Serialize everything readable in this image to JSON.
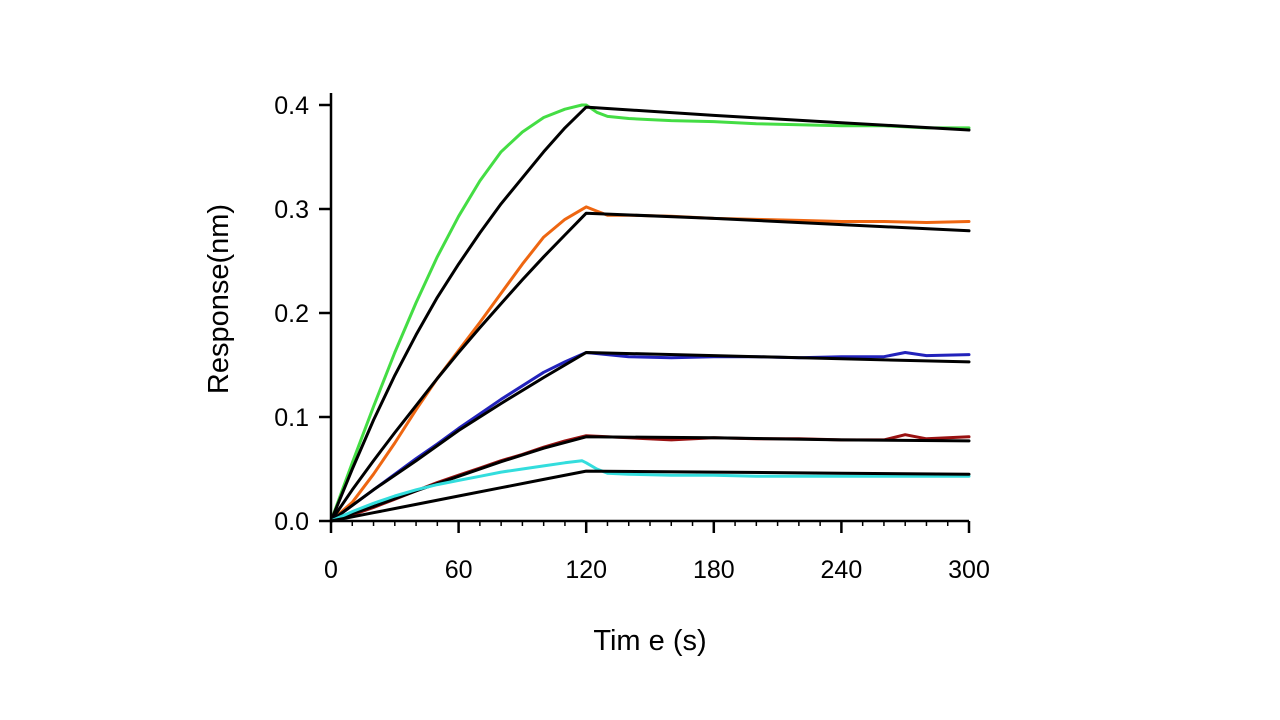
{
  "chart_data": {
    "type": "line",
    "xlabel": "Tim e  (s)",
    "ylabel": "Response(nm)",
    "xlim": [
      0,
      300
    ],
    "ylim": [
      0,
      0.4
    ],
    "xticks": [
      0,
      60,
      120,
      180,
      240,
      300
    ],
    "xtick_labels": [
      "0",
      "60",
      "120",
      "180",
      "240",
      "300"
    ],
    "yticks": [
      0,
      0.1,
      0.2,
      0.3,
      0.4
    ],
    "ytick_labels": [
      "0.0",
      "0.1",
      "0.2",
      "0.3",
      "0.4"
    ],
    "grid": false,
    "legend": "none",
    "association_end": 120,
    "series": [
      {
        "color": "#44dd44",
        "kind": "measured",
        "x": [
          0,
          10,
          20,
          30,
          40,
          50,
          60,
          70,
          80,
          90,
          100,
          110,
          118,
          120,
          125,
          130,
          140,
          150,
          160,
          180,
          200,
          220,
          240,
          260,
          280,
          300
        ],
        "y": [
          0,
          0.056,
          0.11,
          0.162,
          0.21,
          0.254,
          0.293,
          0.327,
          0.355,
          0.374,
          0.388,
          0.396,
          0.4,
          0.4,
          0.393,
          0.389,
          0.387,
          0.386,
          0.385,
          0.384,
          0.382,
          0.381,
          0.38,
          0.38,
          0.378,
          0.378
        ]
      },
      {
        "color": "#000000",
        "kind": "fit",
        "x": [
          0,
          10,
          20,
          30,
          40,
          50,
          60,
          70,
          80,
          90,
          100,
          110,
          120,
          180,
          240,
          300
        ],
        "y": [
          0,
          0.05,
          0.097,
          0.14,
          0.179,
          0.215,
          0.247,
          0.277,
          0.305,
          0.33,
          0.355,
          0.378,
          0.398,
          0.39,
          0.383,
          0.376
        ]
      },
      {
        "color": "#ee6611",
        "kind": "measured",
        "x": [
          0,
          10,
          20,
          30,
          40,
          50,
          60,
          70,
          80,
          90,
          100,
          110,
          120,
          125,
          130,
          140,
          160,
          180,
          200,
          220,
          240,
          260,
          280,
          300
        ],
        "y": [
          0,
          0.018,
          0.045,
          0.075,
          0.107,
          0.137,
          0.164,
          0.191,
          0.219,
          0.247,
          0.273,
          0.29,
          0.302,
          0.298,
          0.294,
          0.294,
          0.293,
          0.291,
          0.29,
          0.289,
          0.288,
          0.288,
          0.287,
          0.288
        ]
      },
      {
        "color": "#000000",
        "kind": "fit",
        "x": [
          0,
          10,
          20,
          30,
          40,
          50,
          60,
          70,
          80,
          90,
          100,
          110,
          120,
          180,
          240,
          300
        ],
        "y": [
          0,
          0.03,
          0.058,
          0.085,
          0.111,
          0.137,
          0.162,
          0.186,
          0.209,
          0.232,
          0.254,
          0.275,
          0.296,
          0.291,
          0.285,
          0.279
        ]
      },
      {
        "color": "#2222bb",
        "kind": "measured",
        "x": [
          0,
          10,
          20,
          30,
          40,
          50,
          60,
          70,
          80,
          90,
          100,
          110,
          120,
          140,
          160,
          180,
          200,
          220,
          240,
          260,
          270,
          280,
          300
        ],
        "y": [
          0,
          0.015,
          0.03,
          0.045,
          0.06,
          0.074,
          0.089,
          0.103,
          0.117,
          0.13,
          0.143,
          0.153,
          0.162,
          0.158,
          0.157,
          0.158,
          0.158,
          0.157,
          0.158,
          0.158,
          0.162,
          0.159,
          0.16
        ]
      },
      {
        "color": "#000000",
        "kind": "fit",
        "x": [
          0,
          20,
          40,
          60,
          80,
          100,
          120,
          180,
          240,
          300
        ],
        "y": [
          0,
          0.03,
          0.058,
          0.087,
          0.113,
          0.138,
          0.162,
          0.159,
          0.156,
          0.153
        ]
      },
      {
        "color": "#991111",
        "kind": "measured",
        "x": [
          0,
          10,
          20,
          30,
          40,
          50,
          60,
          70,
          80,
          90,
          100,
          110,
          120,
          140,
          160,
          180,
          200,
          220,
          240,
          260,
          270,
          280,
          300
        ],
        "y": [
          0,
          0.006,
          0.013,
          0.021,
          0.029,
          0.037,
          0.044,
          0.051,
          0.058,
          0.064,
          0.071,
          0.077,
          0.082,
          0.08,
          0.078,
          0.08,
          0.079,
          0.079,
          0.078,
          0.078,
          0.083,
          0.079,
          0.081
        ]
      },
      {
        "color": "#000000",
        "kind": "fit",
        "x": [
          0,
          20,
          40,
          60,
          80,
          100,
          120,
          180,
          240,
          300
        ],
        "y": [
          0,
          0.014,
          0.029,
          0.043,
          0.057,
          0.07,
          0.081,
          0.08,
          0.078,
          0.077
        ]
      },
      {
        "color": "#33dddd",
        "kind": "measured",
        "x": [
          0,
          10,
          20,
          30,
          40,
          50,
          60,
          70,
          80,
          90,
          100,
          110,
          118,
          120,
          125,
          130,
          140,
          160,
          180,
          200,
          220,
          240,
          260,
          280,
          300
        ],
        "y": [
          0,
          0.009,
          0.017,
          0.024,
          0.03,
          0.035,
          0.039,
          0.043,
          0.047,
          0.05,
          0.053,
          0.056,
          0.058,
          0.056,
          0.05,
          0.046,
          0.045,
          0.044,
          0.044,
          0.043,
          0.043,
          0.043,
          0.043,
          0.043,
          0.043
        ]
      },
      {
        "color": "#000000",
        "kind": "fit",
        "x": [
          0,
          20,
          40,
          60,
          80,
          100,
          120,
          180,
          240,
          300
        ],
        "y": [
          0,
          0.008,
          0.016,
          0.024,
          0.032,
          0.04,
          0.048,
          0.047,
          0.046,
          0.045
        ]
      }
    ]
  }
}
